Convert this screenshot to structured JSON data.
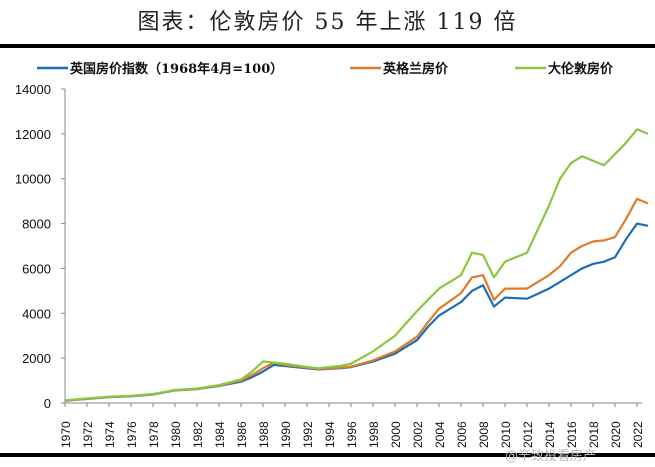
{
  "title": "图表：伦敦房价 55 年上涨 119 倍",
  "watermark": "@辛致投看房产",
  "chart_data": {
    "type": "line",
    "title": "",
    "xlabel": "",
    "ylabel": "",
    "ylim": [
      0,
      14000
    ],
    "xlim": [
      1970,
      2023
    ],
    "yticks": [
      0,
      2000,
      4000,
      6000,
      8000,
      10000,
      12000,
      14000
    ],
    "xticks": [
      1970,
      1972,
      1974,
      1976,
      1978,
      1980,
      1982,
      1984,
      1986,
      1988,
      1990,
      1992,
      1994,
      1996,
      1998,
      2000,
      2002,
      2004,
      2006,
      2008,
      2010,
      2012,
      2014,
      2016,
      2018,
      2020,
      2022
    ],
    "grid": false,
    "legend": "top",
    "x": [
      1970,
      1972,
      1974,
      1976,
      1978,
      1980,
      1982,
      1984,
      1986,
      1987,
      1988,
      1989,
      1990,
      1992,
      1993,
      1995,
      1996,
      1998,
      2000,
      2002,
      2003,
      2004,
      2006,
      2007,
      2008,
      2009,
      2010,
      2012,
      2014,
      2015,
      2016,
      2017,
      2018,
      2019,
      2020,
      2021,
      2022,
      2023
    ],
    "series": [
      {
        "name": "英国房价指数（1968年4月=100）",
        "color": "#1f6db5",
        "values": [
          100,
          180,
          260,
          300,
          380,
          560,
          620,
          760,
          950,
          1150,
          1400,
          1700,
          1650,
          1550,
          1500,
          1550,
          1600,
          1850,
          2200,
          2800,
          3400,
          3900,
          4500,
          5000,
          5250,
          4300,
          4700,
          4650,
          5100,
          5400,
          5700,
          6000,
          6200,
          6300,
          6500,
          7300,
          8000,
          7900
        ]
      },
      {
        "name": "英格兰房价",
        "color": "#e07b2a",
        "values": [
          110,
          190,
          270,
          310,
          390,
          570,
          630,
          780,
          1000,
          1250,
          1550,
          1800,
          1700,
          1580,
          1520,
          1570,
          1620,
          1900,
          2300,
          2950,
          3600,
          4200,
          4900,
          5600,
          5700,
          4600,
          5100,
          5100,
          5700,
          6100,
          6700,
          7000,
          7200,
          7250,
          7400,
          8200,
          9100,
          8900
        ]
      },
      {
        "name": "大伦敦房价",
        "color": "#8cc63f",
        "values": [
          120,
          200,
          280,
          320,
          400,
          580,
          640,
          800,
          1050,
          1400,
          1850,
          1800,
          1750,
          1600,
          1550,
          1650,
          1750,
          2300,
          3000,
          4100,
          4600,
          5100,
          5700,
          6700,
          6600,
          5600,
          6300,
          6700,
          8800,
          10000,
          10700,
          11000,
          10800,
          10600,
          11100,
          11600,
          12200,
          12000
        ]
      }
    ]
  }
}
